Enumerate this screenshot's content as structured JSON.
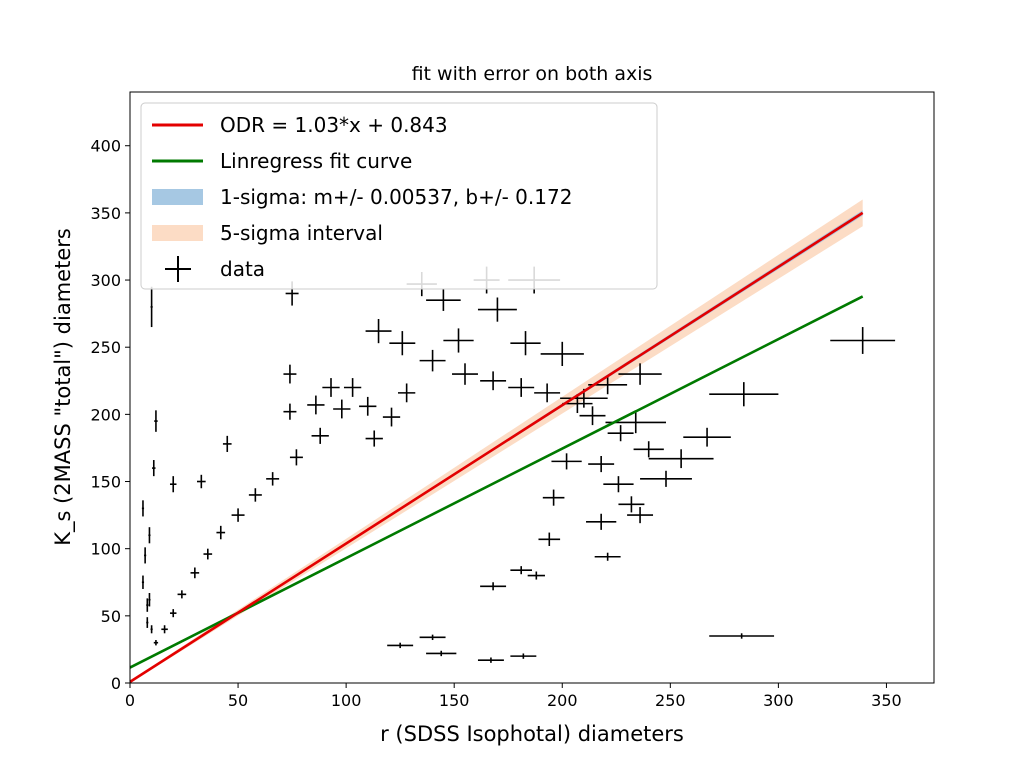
{
  "chart_data": {
    "type": "scatter",
    "title": "fit with error on both axis",
    "xlabel": "r (SDSS Isophotal) diameters",
    "ylabel": "K_s (2MASS \"total\") diameters",
    "xlim": [
      0,
      372
    ],
    "ylim": [
      0,
      440
    ],
    "xticks": [
      "0",
      "50",
      "100",
      "150",
      "200",
      "250",
      "300",
      "350"
    ],
    "yticks": [
      "0",
      "50",
      "100",
      "150",
      "200",
      "250",
      "300",
      "350",
      "400"
    ],
    "grid": false,
    "legend_position": "upper-left",
    "fits": [
      {
        "name": "ODR = 1.03*x + 0.843",
        "slope": 1.03,
        "intercept": 0.843,
        "x_range": [
          0,
          339
        ],
        "color": "#e30000"
      },
      {
        "name": "Linregress fit curve",
        "slope": 0.815,
        "intercept": 11.5,
        "x_range": [
          0,
          339
        ],
        "color": "#007a00"
      }
    ],
    "bands": [
      {
        "name": "1-sigma: m+/- 0.00537, b+/- 0.172",
        "sigma": 1,
        "slope_err": 0.00537,
        "intercept_err": 0.172,
        "color": "#a6c8e3"
      },
      {
        "name": "5-sigma interval",
        "sigma": 5,
        "slope_err": 0.00537,
        "intercept_err": 0.172,
        "color": "#fcdcc5"
      }
    ],
    "data_series_name": "data",
    "data_color": "#000000",
    "data_points": [
      [
        339,
        255,
        15,
        10
      ],
      [
        284,
        215,
        16,
        9
      ],
      [
        267,
        183,
        11,
        7
      ],
      [
        255,
        167,
        15,
        7
      ],
      [
        283,
        35,
        15,
        2
      ],
      [
        248,
        152,
        12,
        6
      ],
      [
        236,
        230,
        10,
        8
      ],
      [
        221,
        222,
        9,
        7
      ],
      [
        234,
        194,
        14,
        8
      ],
      [
        210,
        212,
        11,
        7
      ],
      [
        200,
        245,
        10,
        9
      ],
      [
        187,
        300,
        12,
        10
      ],
      [
        170,
        278,
        9,
        9
      ],
      [
        165,
        300,
        6,
        10
      ],
      [
        152,
        255,
        7,
        9
      ],
      [
        145,
        285,
        8,
        8
      ],
      [
        135,
        297,
        7,
        9
      ],
      [
        115,
        262,
        6,
        9
      ],
      [
        126,
        253,
        6,
        9
      ],
      [
        75,
        290,
        3,
        9
      ],
      [
        74,
        230,
        3,
        7
      ],
      [
        74,
        202,
        3,
        6
      ],
      [
        10,
        280,
        0.5,
        15
      ],
      [
        45,
        178,
        2,
        6
      ],
      [
        33,
        150,
        2,
        5
      ],
      [
        20,
        148,
        1.5,
        6
      ],
      [
        183,
        253,
        7,
        9
      ],
      [
        140,
        240,
        6,
        8
      ],
      [
        155,
        230,
        6,
        8
      ],
      [
        168,
        225,
        6,
        7
      ],
      [
        181,
        220,
        6,
        7
      ],
      [
        193,
        216,
        6,
        7
      ],
      [
        207,
        208,
        7,
        7
      ],
      [
        214,
        199,
        6,
        7
      ],
      [
        227,
        186,
        6,
        6
      ],
      [
        240,
        174,
        7,
        6
      ],
      [
        202,
        165,
        7,
        6
      ],
      [
        218,
        163,
        6,
        6
      ],
      [
        226,
        148,
        7,
        6
      ],
      [
        232,
        133,
        6,
        6
      ],
      [
        236,
        125,
        6,
        6
      ],
      [
        218,
        120,
        7,
        6
      ],
      [
        221,
        94,
        6,
        3
      ],
      [
        194,
        107,
        5,
        5
      ],
      [
        196,
        138,
        5,
        6
      ],
      [
        181,
        84,
        5,
        3
      ],
      [
        168,
        72,
        6,
        3
      ],
      [
        188,
        80,
        4,
        3
      ],
      [
        182,
        20,
        6,
        2
      ],
      [
        167,
        17,
        6,
        2
      ],
      [
        144,
        22,
        7,
        2
      ],
      [
        125,
        28,
        6,
        2
      ],
      [
        140,
        34,
        6,
        2
      ],
      [
        103,
        220,
        4,
        7
      ],
      [
        93,
        220,
        4,
        7
      ],
      [
        86,
        207,
        4,
        7
      ],
      [
        98,
        204,
        4,
        7
      ],
      [
        110,
        206,
        4,
        7
      ],
      [
        121,
        198,
        4,
        7
      ],
      [
        128,
        216,
        4,
        7
      ],
      [
        113,
        182,
        4,
        6
      ],
      [
        88,
        184,
        4,
        6
      ],
      [
        77,
        168,
        3,
        6
      ],
      [
        66,
        152,
        3,
        5
      ],
      [
        58,
        140,
        3,
        5
      ],
      [
        50,
        125,
        3,
        5
      ],
      [
        42,
        112,
        2,
        5
      ],
      [
        36,
        96,
        2,
        4
      ],
      [
        30,
        82,
        2,
        4
      ],
      [
        24,
        66,
        2,
        3
      ],
      [
        20,
        52,
        1.5,
        3
      ],
      [
        16,
        40,
        1.5,
        3
      ],
      [
        12,
        30,
        1,
        2
      ],
      [
        8,
        58,
        0.5,
        5
      ],
      [
        6,
        75,
        0.5,
        5
      ],
      [
        7,
        95,
        0.5,
        6
      ],
      [
        9,
        110,
        0.5,
        6
      ],
      [
        6,
        130,
        0.5,
        6
      ],
      [
        11,
        160,
        0.8,
        6
      ],
      [
        12,
        195,
        0.8,
        8
      ],
      [
        8,
        45,
        0.5,
        4
      ],
      [
        9,
        62,
        0.5,
        5
      ],
      [
        10,
        40,
        0.5,
        3
      ]
    ]
  }
}
